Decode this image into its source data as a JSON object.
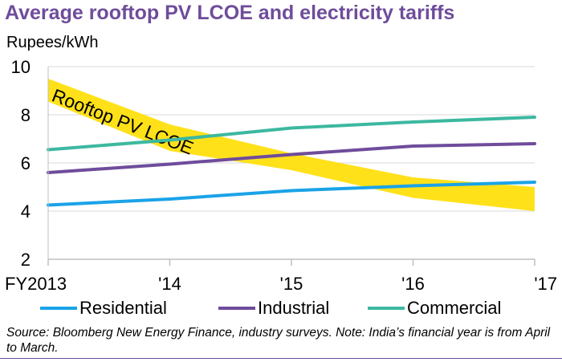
{
  "chart_data": {
    "type": "line",
    "title": "Average rooftop PV LCOE and electricity tariffs",
    "ylabel": "Rupees/kWh",
    "xlabel": "",
    "categories": [
      "FY2013",
      "'14",
      "'15",
      "'16",
      "'17"
    ],
    "ylim": [
      2,
      10
    ],
    "yticks": [
      2,
      4,
      6,
      8,
      10
    ],
    "grid": true,
    "legend_position": "bottom",
    "series": [
      {
        "name": "Residential",
        "color": "#1aa3e8",
        "values": [
          4.25,
          4.5,
          4.85,
          5.05,
          5.2
        ]
      },
      {
        "name": "Industrial",
        "color": "#6f4c9b",
        "values": [
          5.6,
          5.95,
          6.35,
          6.7,
          6.8
        ]
      },
      {
        "name": "Commercial",
        "color": "#3cb8a0",
        "values": [
          6.55,
          6.95,
          7.45,
          7.7,
          7.9
        ]
      }
    ],
    "band": {
      "label": "Rooftop PV LCOE",
      "color": "#ffe11a",
      "upper": [
        9.5,
        7.6,
        6.4,
        5.4,
        5.0
      ],
      "lower": [
        8.55,
        6.5,
        5.7,
        4.55,
        4.0
      ]
    }
  },
  "footer": {
    "source": "Source: Bloomberg New Energy Finance, industry surveys. Note: India’s financial year is from April to March."
  }
}
